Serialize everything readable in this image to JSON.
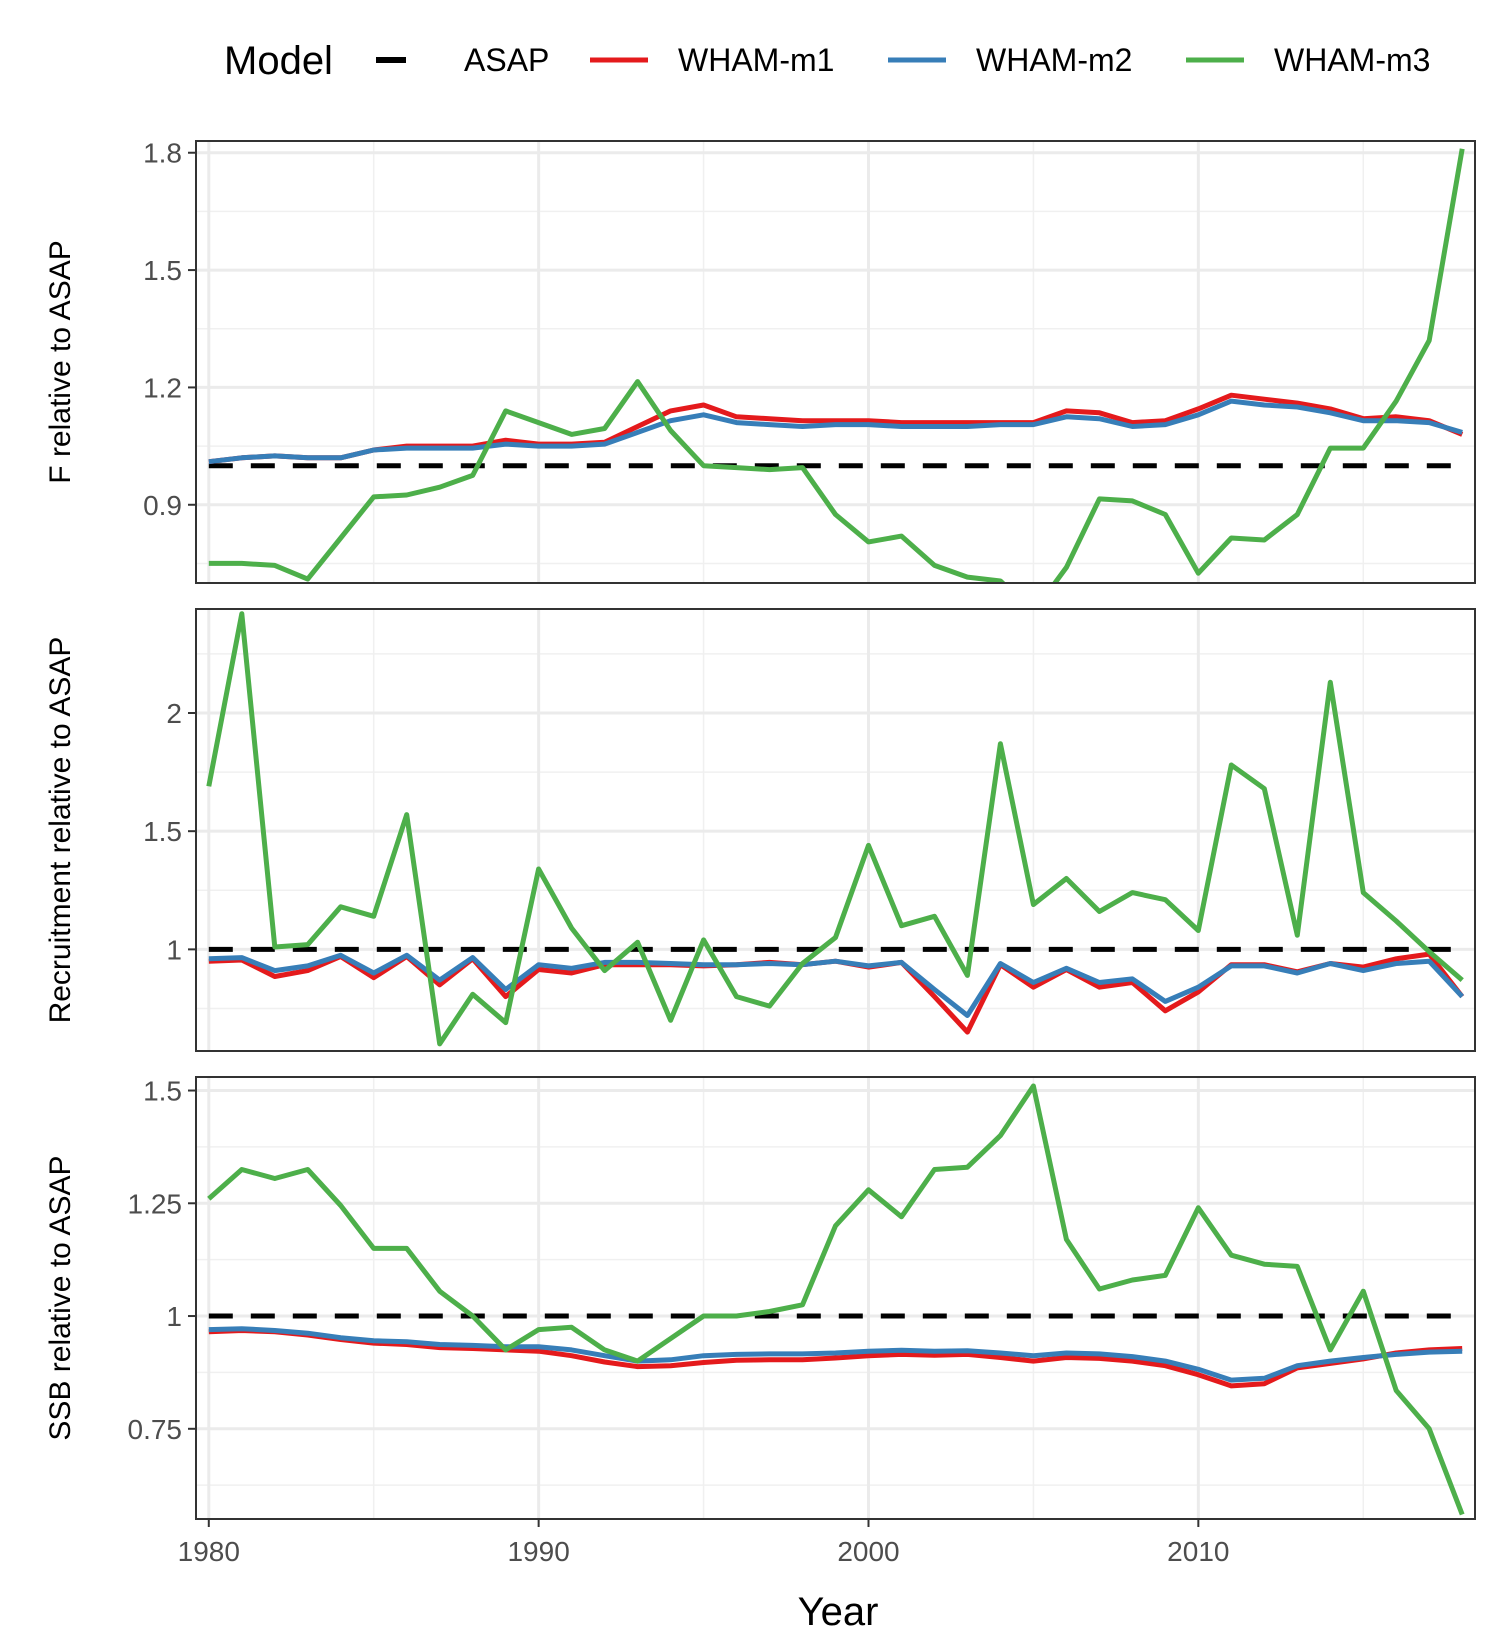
{
  "chart_data": {
    "type": "line",
    "legend": {
      "title": "Model",
      "placement": "top",
      "entries": [
        {
          "name": "ASAP",
          "color": "#000000",
          "style": "dashed"
        },
        {
          "name": "WHAM-m1",
          "color": "#E41A1C",
          "style": "solid"
        },
        {
          "name": "WHAM-m2",
          "color": "#377EB8",
          "style": "solid"
        },
        {
          "name": "WHAM-m3",
          "color": "#4DAF4A",
          "style": "solid"
        }
      ]
    },
    "xlabel": "Year",
    "xlim": [
      1980,
      2018
    ],
    "xticks": [
      1980,
      1990,
      2000,
      2010
    ],
    "grid": true,
    "x": [
      1980,
      1981,
      1982,
      1983,
      1984,
      1985,
      1986,
      1987,
      1988,
      1989,
      1990,
      1991,
      1992,
      1993,
      1994,
      1995,
      1996,
      1997,
      1998,
      1999,
      2000,
      2001,
      2002,
      2003,
      2004,
      2005,
      2006,
      2007,
      2008,
      2009,
      2010,
      2011,
      2012,
      2013,
      2014,
      2015,
      2016,
      2017,
      2018
    ],
    "panels": [
      {
        "ylabel": "F relative to ASAP",
        "ylim": [
          0.7,
          1.83
        ],
        "yticks": [
          0.9,
          1.2,
          1.5,
          1.8
        ],
        "ytick_labels": [
          "0.9",
          "1.2",
          "1.5",
          "1.8"
        ],
        "series": [
          {
            "name": "ASAP",
            "values": [
              1,
              1,
              1,
              1,
              1,
              1,
              1,
              1,
              1,
              1,
              1,
              1,
              1,
              1,
              1,
              1,
              1,
              1,
              1,
              1,
              1,
              1,
              1,
              1,
              1,
              1,
              1,
              1,
              1,
              1,
              1,
              1,
              1,
              1,
              1,
              1,
              1,
              1,
              1
            ]
          },
          {
            "name": "WHAM-m1",
            "values": [
              1.01,
              1.02,
              1.025,
              1.02,
              1.02,
              1.04,
              1.05,
              1.05,
              1.05,
              1.065,
              1.055,
              1.055,
              1.06,
              1.1,
              1.14,
              1.155,
              1.125,
              1.12,
              1.115,
              1.115,
              1.115,
              1.11,
              1.11,
              1.11,
              1.11,
              1.11,
              1.14,
              1.135,
              1.11,
              1.115,
              1.145,
              1.18,
              1.17,
              1.16,
              1.145,
              1.12,
              1.125,
              1.115,
              1.08
            ]
          },
          {
            "name": "WHAM-m2",
            "values": [
              1.01,
              1.02,
              1.025,
              1.02,
              1.02,
              1.04,
              1.045,
              1.045,
              1.045,
              1.055,
              1.05,
              1.05,
              1.055,
              1.085,
              1.115,
              1.13,
              1.11,
              1.105,
              1.1,
              1.105,
              1.105,
              1.1,
              1.1,
              1.1,
              1.105,
              1.105,
              1.125,
              1.12,
              1.1,
              1.105,
              1.13,
              1.165,
              1.155,
              1.15,
              1.135,
              1.115,
              1.115,
              1.11,
              1.085
            ]
          },
          {
            "name": "WHAM-m3",
            "values": [
              0.75,
              0.75,
              0.745,
              0.71,
              0.815,
              0.92,
              0.925,
              0.945,
              0.975,
              1.14,
              1.11,
              1.08,
              1.095,
              1.215,
              1.09,
              1.0,
              0.995,
              0.99,
              0.995,
              0.875,
              0.805,
              0.82,
              0.745,
              0.715,
              0.705,
              0.625,
              0.74,
              0.915,
              0.91,
              0.875,
              0.725,
              0.815,
              0.81,
              0.875,
              1.045,
              1.045,
              1.165,
              1.32,
              1.81
            ]
          }
        ]
      },
      {
        "ylabel": "Recruitment relative to ASAP",
        "ylim": [
          0.57,
          2.44
        ],
        "yticks": [
          1,
          1.5,
          2
        ],
        "ytick_labels": [
          "1",
          "1.5",
          "2"
        ],
        "series": [
          {
            "name": "ASAP",
            "values": [
              1,
              1,
              1,
              1,
              1,
              1,
              1,
              1,
              1,
              1,
              1,
              1,
              1,
              1,
              1,
              1,
              1,
              1,
              1,
              1,
              1,
              1,
              1,
              1,
              1,
              1,
              1,
              1,
              1,
              1,
              1,
              1,
              1,
              1,
              1,
              1,
              1,
              1,
              1
            ]
          },
          {
            "name": "WHAM-m1",
            "values": [
              0.95,
              0.955,
              0.885,
              0.91,
              0.97,
              0.88,
              0.97,
              0.85,
              0.96,
              0.8,
              0.915,
              0.9,
              0.935,
              0.935,
              0.935,
              0.93,
              0.935,
              0.945,
              0.935,
              0.95,
              0.925,
              0.945,
              0.8,
              0.65,
              0.935,
              0.84,
              0.915,
              0.84,
              0.86,
              0.74,
              0.82,
              0.935,
              0.935,
              0.905,
              0.94,
              0.925,
              0.96,
              0.98,
              0.8
            ]
          },
          {
            "name": "WHAM-m2",
            "values": [
              0.96,
              0.965,
              0.91,
              0.93,
              0.975,
              0.9,
              0.975,
              0.87,
              0.965,
              0.83,
              0.935,
              0.92,
              0.945,
              0.945,
              0.94,
              0.935,
              0.935,
              0.94,
              0.935,
              0.95,
              0.93,
              0.945,
              0.83,
              0.72,
              0.94,
              0.86,
              0.92,
              0.86,
              0.875,
              0.78,
              0.84,
              0.93,
              0.93,
              0.9,
              0.94,
              0.91,
              0.94,
              0.95,
              0.8
            ]
          },
          {
            "name": "WHAM-m3",
            "values": [
              1.69,
              2.42,
              1.01,
              1.02,
              1.18,
              1.14,
              1.57,
              0.6,
              0.81,
              0.69,
              1.34,
              1.09,
              0.91,
              1.03,
              0.7,
              1.04,
              0.8,
              0.76,
              0.94,
              1.05,
              1.44,
              1.1,
              1.14,
              0.89,
              1.87,
              1.19,
              1.3,
              1.16,
              1.24,
              1.21,
              1.08,
              1.78,
              1.68,
              1.06,
              2.13,
              1.24,
              1.12,
              0.99,
              0.87
            ]
          }
        ]
      },
      {
        "ylabel": "SSB relative to ASAP",
        "ylim": [
          0.55,
          1.53
        ],
        "yticks": [
          0.75,
          1,
          1.25,
          1.5
        ],
        "ytick_labels": [
          "0.75",
          "1",
          "1.25",
          "1.5"
        ],
        "series": [
          {
            "name": "ASAP",
            "values": [
              1,
              1,
              1,
              1,
              1,
              1,
              1,
              1,
              1,
              1,
              1,
              1,
              1,
              1,
              1,
              1,
              1,
              1,
              1,
              1,
              1,
              1,
              1,
              1,
              1,
              1,
              1,
              1,
              1,
              1,
              1,
              1,
              1,
              1,
              1,
              1,
              1,
              1,
              1
            ]
          },
          {
            "name": "WHAM-m1",
            "values": [
              0.965,
              0.968,
              0.965,
              0.958,
              0.948,
              0.94,
              0.937,
              0.93,
              0.928,
              0.925,
              0.922,
              0.912,
              0.898,
              0.888,
              0.89,
              0.897,
              0.902,
              0.903,
              0.903,
              0.907,
              0.912,
              0.915,
              0.913,
              0.915,
              0.908,
              0.9,
              0.908,
              0.906,
              0.9,
              0.89,
              0.87,
              0.845,
              0.85,
              0.885,
              0.895,
              0.905,
              0.918,
              0.925,
              0.928
            ]
          },
          {
            "name": "WHAM-m2",
            "values": [
              0.97,
              0.972,
              0.968,
              0.962,
              0.952,
              0.945,
              0.943,
              0.937,
              0.935,
              0.932,
              0.932,
              0.925,
              0.912,
              0.9,
              0.903,
              0.912,
              0.915,
              0.916,
              0.916,
              0.918,
              0.922,
              0.924,
              0.922,
              0.923,
              0.918,
              0.912,
              0.918,
              0.916,
              0.91,
              0.9,
              0.882,
              0.858,
              0.862,
              0.89,
              0.9,
              0.908,
              0.915,
              0.92,
              0.922
            ]
          },
          {
            "name": "WHAM-m3",
            "values": [
              1.26,
              1.325,
              1.305,
              1.325,
              1.245,
              1.15,
              1.15,
              1.055,
              1.0,
              0.925,
              0.97,
              0.975,
              0.925,
              0.9,
              0.95,
              1.0,
              1.0,
              1.01,
              1.025,
              1.2,
              1.28,
              1.22,
              1.325,
              1.33,
              1.4,
              1.51,
              1.17,
              1.06,
              1.08,
              1.09,
              1.24,
              1.135,
              1.115,
              1.11,
              0.925,
              1.055,
              0.835,
              0.75,
              0.56
            ]
          }
        ]
      }
    ]
  }
}
